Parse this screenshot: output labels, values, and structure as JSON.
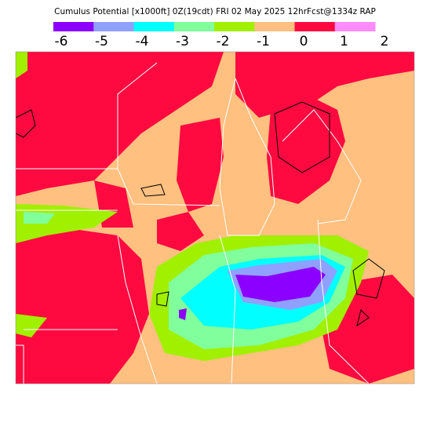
{
  "title": "Cumulus Potential [x1000ft] 0Z(19cdt) FRI 02 May 2025 12hrFcst@1334z RAP",
  "colorbar": {
    "labels": [
      -6,
      -5,
      -4,
      -3,
      -2,
      -1,
      0,
      1,
      2
    ],
    "colors": [
      "#8c00ff",
      "#8fa0ff",
      "#00ffff",
      "#80ff9c",
      "#a0f000",
      "#ffc080",
      "#ff0a40",
      "#ff8cff"
    ]
  }
}
